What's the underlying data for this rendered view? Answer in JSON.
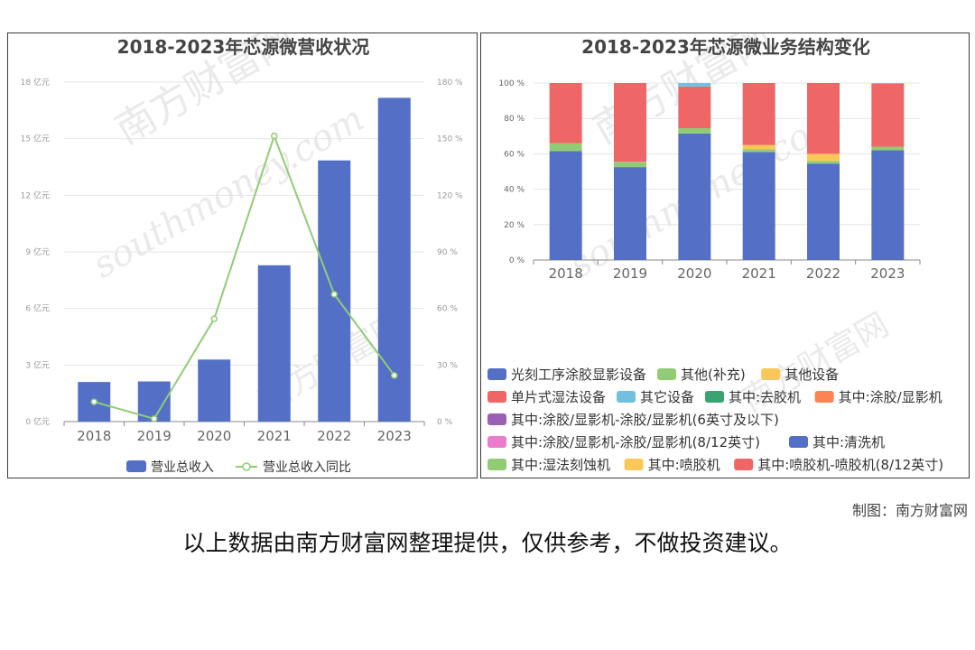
{
  "credit": "制图：南方财富网",
  "footnote": "以上数据由南方财富网整理提供，仅供参考，不做投资建议。",
  "watermark": {
    "brand": "南方财富网",
    "domain": "southmoney.com"
  },
  "colors": {
    "bar": "#5470c6",
    "line": "#91cc75",
    "grid": "#e6e6e6",
    "axis": "#999999"
  },
  "chart_data": [
    {
      "type": "bar",
      "title": "2018-2023年芯源微营收状况",
      "categories": [
        "2018",
        "2019",
        "2020",
        "2021",
        "2022",
        "2023"
      ],
      "series": [
        {
          "name": "营业总收入",
          "type": "bar",
          "axis": "left",
          "values": [
            2.1,
            2.13,
            3.29,
            8.29,
            13.85,
            17.17
          ]
        },
        {
          "name": "营业总收入同比",
          "type": "line",
          "axis": "right",
          "values": [
            10.5,
            1.5,
            54.5,
            151.5,
            67.5,
            24.5
          ]
        }
      ],
      "ylim": [
        0,
        18
      ],
      "y_ticks": [
        "0 亿元",
        "3 亿元",
        "6 亿元",
        "9 亿元",
        "12 亿元",
        "15 亿元",
        "18 亿元"
      ],
      "y2lim": [
        0,
        180
      ],
      "y2_ticks": [
        "0 %",
        "30 %",
        "60 %",
        "90 %",
        "120 %",
        "150 %",
        "180 %"
      ],
      "legend": "bottom",
      "grid": true
    },
    {
      "type": "bar",
      "stacked": true,
      "title": "2018-2023年芯源微业务结构变化",
      "categories": [
        "2018",
        "2019",
        "2020",
        "2021",
        "2022",
        "2023"
      ],
      "ylim": [
        0,
        100
      ],
      "y_ticks": [
        "0 %",
        "20 %",
        "40 %",
        "60 %",
        "80 %",
        "100 %"
      ],
      "legend": "bottom",
      "legend_items": [
        {
          "name": "光刻工序涂胶显影设备",
          "color": "#5470c6"
        },
        {
          "name": "其他(补充)",
          "color": "#91cc75"
        },
        {
          "name": "其他设备",
          "color": "#fac858"
        },
        {
          "name": "单片式湿法设备",
          "color": "#ee6666"
        },
        {
          "name": "其它设备",
          "color": "#73c0de"
        },
        {
          "name": "其中:去胶机",
          "color": "#3ba272"
        },
        {
          "name": "其中:涂胶/显影机",
          "color": "#fc8452"
        },
        {
          "name": "其中:涂胶/显影机-涂胶/显影机(6英寸及以下)",
          "color": "#9a60b4"
        },
        {
          "name": "其中:涂胶/显影机-涂胶/显影机(8/12英寸)",
          "color": "#ea7ccc"
        },
        {
          "name": "其中:清洗机",
          "color": "#5470c6"
        },
        {
          "name": "其中:湿法刻蚀机",
          "color": "#91cc75"
        },
        {
          "name": "其中:喷胶机",
          "color": "#fac858"
        },
        {
          "name": "其中:喷胶机-喷胶机(8/12英寸)",
          "color": "#ee6666"
        }
      ],
      "segments": [
        [
          {
            "series": "光刻工序涂胶显影设备",
            "value": 61.5
          },
          {
            "series": "其他(补充)",
            "value": 4.5
          },
          {
            "series": "单片式湿法设备",
            "value": 34.0
          }
        ],
        [
          {
            "series": "光刻工序涂胶显影设备",
            "value": 52.5
          },
          {
            "series": "其他(补充)",
            "value": 3.0
          },
          {
            "series": "单片式湿法设备",
            "value": 44.5
          }
        ],
        [
          {
            "series": "光刻工序涂胶显影设备",
            "value": 71.5
          },
          {
            "series": "其他(补充)",
            "value": 3.0
          },
          {
            "series": "单片式湿法设备",
            "value": 23.5
          },
          {
            "series": "其它设备",
            "value": 2.0
          }
        ],
        [
          {
            "series": "光刻工序涂胶显影设备",
            "value": 61.0
          },
          {
            "series": "其他(补充)",
            "value": 1.5
          },
          {
            "series": "其他设备",
            "value": 2.5
          },
          {
            "series": "单片式湿法设备",
            "value": 35.0
          }
        ],
        [
          {
            "series": "光刻工序涂胶显影设备",
            "value": 54.5
          },
          {
            "series": "其他(补充)",
            "value": 1.5
          },
          {
            "series": "其他设备",
            "value": 4.0
          },
          {
            "series": "单片式湿法设备",
            "value": 40.0
          }
        ],
        [
          {
            "series": "光刻工序涂胶显影设备",
            "value": 62.0
          },
          {
            "series": "其他(补充)",
            "value": 2.0
          },
          {
            "series": "单片式湿法设备",
            "value": 35.5
          },
          {
            "series": "其它设备",
            "value": 0.5
          }
        ]
      ],
      "grid": true
    }
  ]
}
